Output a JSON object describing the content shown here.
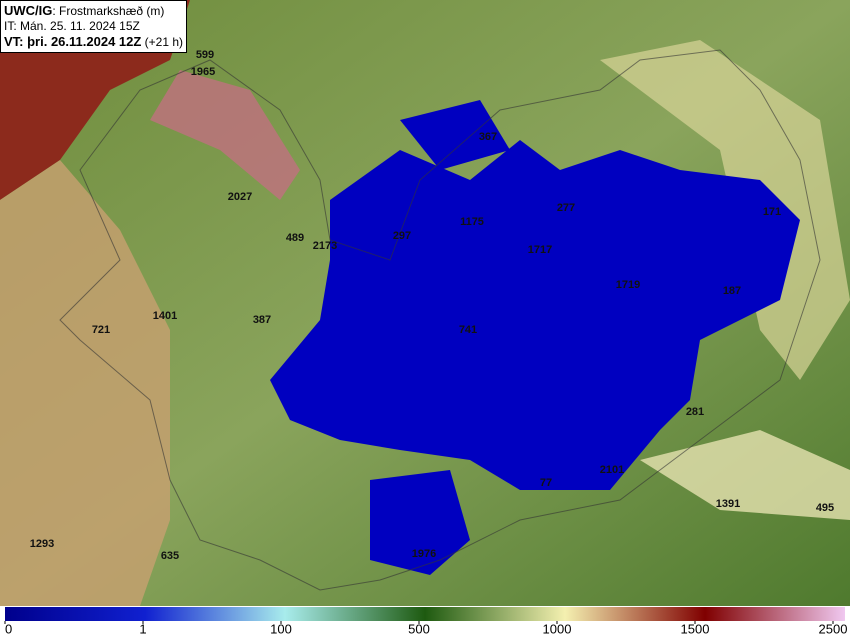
{
  "header": {
    "model": "UWC/IG",
    "field": ": Frostmarkshæð (m)",
    "issue_time": "IT: Mán. 25. 11. 2024 15Z",
    "valid_time": "VT: þri. 26.11.2024 12Z",
    "lead": " (+21 h)"
  },
  "points": [
    599,
    1965,
    2027,
    489,
    2173,
    297,
    1175,
    367,
    277,
    1717,
    1719,
    187,
    171,
    1401,
    387,
    721,
    741,
    281,
    2101,
    77,
    1391,
    495,
    1293,
    635,
    1976
  ],
  "colorbar": {
    "ticks": [
      0,
      1,
      100,
      500,
      1000,
      1500,
      2500
    ],
    "colors": [
      "#00008c",
      "#1020d0",
      "#a8ecec",
      "#1e5a10",
      "#f4f0b0",
      "#800000",
      "#f0c8f0"
    ]
  }
}
